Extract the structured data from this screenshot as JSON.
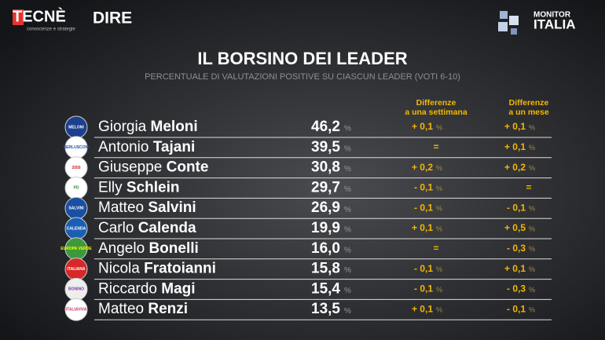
{
  "header": {
    "left_logo": "TECNÈ",
    "left_logo_tagline": "conoscenze e strategie",
    "center_logo": "DIRE",
    "right_logo_top": "MONITOR",
    "right_logo_bottom": "ITALIA"
  },
  "title": "IL BORSINO DEI LEADER",
  "subtitle": "PERCENTUALE DI VALUTAZIONI POSITIVE SU CIASCUN LEADER (VOTI 6-10)",
  "table": {
    "columns": [
      [
        "Differenze",
        "a una settimana"
      ],
      [
        "Differenze",
        "a un mese"
      ]
    ],
    "unit": "%",
    "rows": [
      {
        "first_name": "Giorgia",
        "last_name": "Meloni",
        "value": "46,2",
        "week": "+ 0,1",
        "month": "+ 0,1",
        "logo": "MELONI"
      },
      {
        "first_name": "Antonio",
        "last_name": "Tajani",
        "value": "39,5",
        "week": "=",
        "month": "+ 0,1",
        "logo": "BERLUSCONI"
      },
      {
        "first_name": "Giuseppe",
        "last_name": "Conte",
        "value": "30,8",
        "week": "+ 0,2",
        "month": "+ 0,2",
        "logo": "2050"
      },
      {
        "first_name": "Elly",
        "last_name": "Schlein",
        "value": "29,7",
        "week": "- 0,1",
        "month": "=",
        "logo": "PD"
      },
      {
        "first_name": "Matteo",
        "last_name": "Salvini",
        "value": "26,9",
        "week": "- 0,1",
        "month": "- 0,1",
        "logo": "SALVINI"
      },
      {
        "first_name": "Carlo",
        "last_name": "Calenda",
        "value": "19,9",
        "week": "+ 0,1",
        "month": "+ 0,5",
        "logo": "CALENDA"
      },
      {
        "first_name": "Angelo",
        "last_name": "Bonelli",
        "value": "16,0",
        "week": "=",
        "month": "- 0,3",
        "logo": "EUROPA VERDE"
      },
      {
        "first_name": "Nicola",
        "last_name": "Fratoianni",
        "value": "15,8",
        "week": "- 0,1",
        "month": "+ 0,1",
        "logo": "ITALIANA"
      },
      {
        "first_name": "Riccardo",
        "last_name": "Magi",
        "value": "15,4",
        "week": "- 0,1",
        "month": "- 0,3",
        "logo": "BONINO"
      },
      {
        "first_name": "Matteo",
        "last_name": "Renzi",
        "value": "13,5",
        "week": "+ 0,1",
        "month": "- 0,1",
        "logo": "ITALIAVIVA"
      }
    ]
  }
}
